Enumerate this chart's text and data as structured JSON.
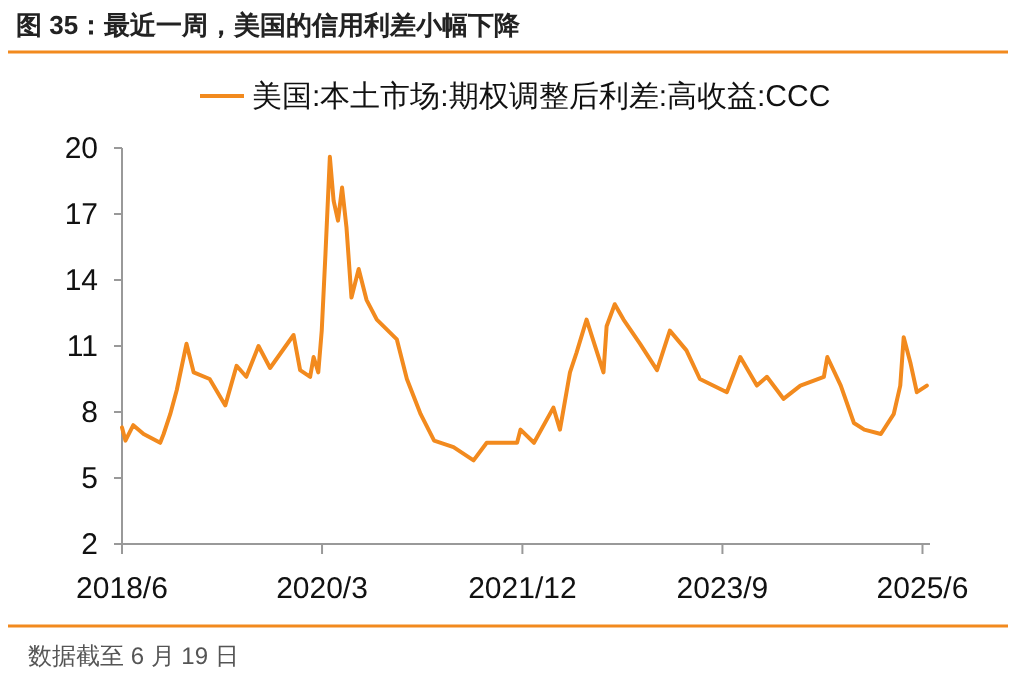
{
  "chart_data": {
    "type": "line",
    "title": "图 35：最近一周，美国的信用利差小幅下降",
    "x": [
      "2018-06-01",
      "2018-06-12",
      "2018-07-07",
      "2018-08-09",
      "2018-10-01",
      "2018-10-12",
      "2018-11-02",
      "2018-11-23",
      "2018-12-24",
      "2019-01-16",
      "2019-03-08",
      "2019-04-27",
      "2019-06-02",
      "2019-07-03",
      "2019-08-11",
      "2019-09-17",
      "2019-12-01",
      "2019-12-22",
      "2020-01-23",
      "2020-02-03",
      "2020-02-18",
      "2020-02-29",
      "2020-03-12",
      "2020-03-26",
      "2020-04-07",
      "2020-04-21",
      "2020-05-04",
      "2020-05-18",
      "2020-06-03",
      "2020-06-26",
      "2020-07-21",
      "2020-08-23",
      "2020-10-26",
      "2020-11-27",
      "2021-01-10",
      "2021-02-22",
      "2021-04-25",
      "2021-06-28",
      "2021-08-09",
      "2021-11-14",
      "2021-11-25",
      "2022-01-07",
      "2022-03-10",
      "2022-03-31",
      "2022-05-02",
      "2022-05-23",
      "2022-06-24",
      "2022-08-17",
      "2022-08-27",
      "2022-09-22",
      "2022-10-20",
      "2022-12-12",
      "2023-02-04",
      "2023-03-17",
      "2023-05-09",
      "2023-06-21",
      "2023-09-15",
      "2023-10-28",
      "2023-12-20",
      "2024-01-21",
      "2024-03-14",
      "2024-05-07",
      "2024-07-21",
      "2024-08-01",
      "2024-09-13",
      "2024-10-25",
      "2024-11-27",
      "2025-01-19",
      "2025-03-01",
      "2025-03-22",
      "2025-04-02",
      "2025-04-24",
      "2025-05-14",
      "2025-06-15"
    ],
    "series": [
      {
        "name": "美国:本土市场:期权调整后利差:高收益:CCC",
        "color": "#f28a1e",
        "values": [
          7.3,
          6.7,
          7.4,
          7.0,
          6.6,
          7.0,
          7.9,
          9.0,
          11.1,
          9.8,
          9.5,
          8.3,
          10.1,
          9.6,
          11.0,
          10.0,
          11.5,
          9.9,
          9.6,
          10.5,
          9.8,
          11.7,
          15.2,
          19.6,
          17.6,
          16.7,
          18.2,
          16.4,
          13.2,
          14.5,
          13.1,
          12.2,
          11.3,
          9.5,
          7.9,
          6.7,
          6.4,
          5.8,
          6.6,
          6.6,
          7.2,
          6.6,
          8.2,
          7.2,
          9.8,
          10.7,
          12.2,
          9.8,
          11.9,
          12.9,
          12.2,
          11.1,
          9.9,
          11.7,
          10.8,
          9.5,
          8.9,
          10.5,
          9.2,
          9.6,
          8.6,
          9.2,
          9.6,
          10.5,
          9.2,
          7.5,
          7.2,
          7.0,
          7.9,
          9.2,
          11.4,
          10.2,
          8.9,
          9.2
        ]
      }
    ],
    "xlim": [
      "2018-06-01",
      "2025-06-25"
    ],
    "xticks": [
      {
        "value": "2018-06",
        "label": "2018/6"
      },
      {
        "value": "2020-03",
        "label": "2020/3"
      },
      {
        "value": "2021-12",
        "label": "2021/12"
      },
      {
        "value": "2023-09",
        "label": "2023/9"
      },
      {
        "value": "2025-06",
        "label": "2025/6"
      }
    ],
    "ylim": [
      2,
      20
    ],
    "yticks": [
      2,
      5,
      8,
      11,
      14,
      17,
      20
    ],
    "grid": false,
    "legend": "top",
    "marker": "none",
    "line_style": "solid",
    "annotations": [
      "数据截至 6 月 19 日"
    ]
  }
}
